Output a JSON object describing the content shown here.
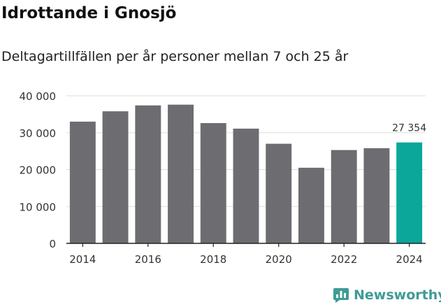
{
  "chart_data": {
    "type": "bar",
    "title": "Idrottande i Gnosjö",
    "subtitle": "Deltagartillfällen per år personer mellan 7 och 25 år",
    "categories": [
      "2014",
      "2015",
      "2016",
      "2017",
      "2018",
      "2019",
      "2020",
      "2021",
      "2022",
      "2023",
      "2024"
    ],
    "values": [
      33000,
      35800,
      37400,
      37600,
      32600,
      31100,
      27000,
      20500,
      25300,
      25800,
      27354
    ],
    "x_tick_labels": [
      "2014",
      "2016",
      "2018",
      "2020",
      "2022",
      "2024"
    ],
    "y_ticks": [
      0,
      10000,
      20000,
      30000,
      40000
    ],
    "y_tick_labels": [
      "0",
      "10 000",
      "20 000",
      "30 000",
      "40 000"
    ],
    "ylim": [
      0,
      40000
    ],
    "grid": "horizontal",
    "bar_color": "#6d6c71",
    "highlight_color": "#0aa79a",
    "highlight_index": 10,
    "annotation": {
      "index": 10,
      "text": "27 354"
    }
  },
  "brand": {
    "name": "Newsworthy",
    "icon": "bar-chart-logo-icon",
    "color": "#3f9b95"
  }
}
